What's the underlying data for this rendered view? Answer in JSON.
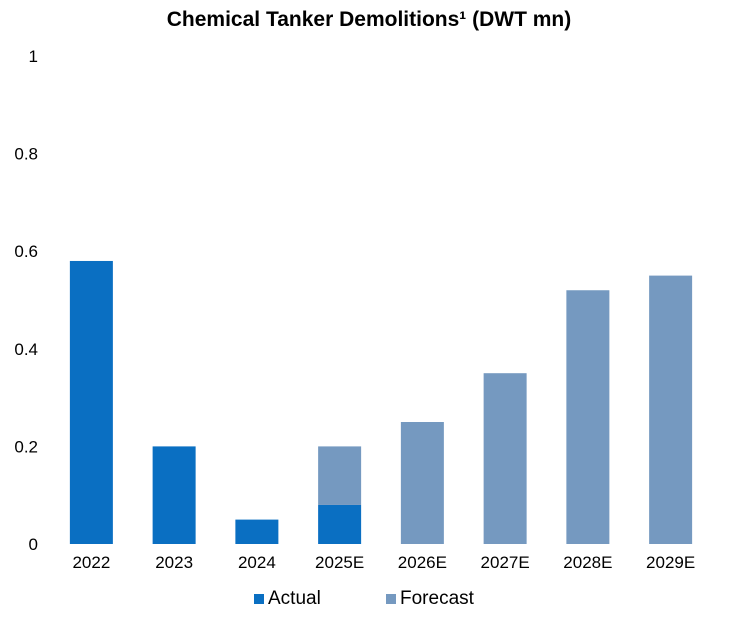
{
  "chart_data": {
    "type": "bar",
    "stacked": true,
    "title": "Chemical Tanker Demolitions¹ (DWT mn)",
    "xlabel": "",
    "ylabel": "",
    "categories": [
      "2022",
      "2023",
      "2024",
      "2025E",
      "2026E",
      "2027E",
      "2028E",
      "2029E"
    ],
    "series": [
      {
        "name": "Actual",
        "color": "#0a6fc2",
        "values": [
          0.58,
          0.2,
          0.05,
          0.08,
          0,
          0,
          0,
          0
        ]
      },
      {
        "name": "Forecast",
        "color": "#7599c0",
        "values": [
          0,
          0,
          0,
          0.12,
          0.25,
          0.35,
          0.52,
          0.55
        ]
      }
    ],
    "ylim": [
      0,
      1
    ],
    "yticks": [
      "0",
      "0.2",
      "0.4",
      "0.6",
      "0.8",
      "1"
    ],
    "grid": false,
    "legend_position": "bottom"
  }
}
